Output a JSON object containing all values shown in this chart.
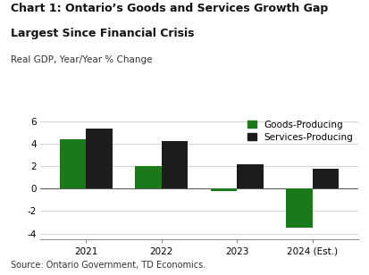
{
  "title_line1": "Chart 1: Ontario’s Goods and Services Growth Gap",
  "title_line2": "Largest Since Financial Crisis",
  "subtitle": "Real GDP, Year/Year % Change",
  "source": "Source: Ontario Government, TD Economics.",
  "years": [
    "2021",
    "2022",
    "2023",
    "2024 (Est.)"
  ],
  "goods_values": [
    4.4,
    2.0,
    -0.2,
    -3.5
  ],
  "services_values": [
    5.3,
    4.2,
    2.2,
    1.8
  ],
  "goods_color": "#1a7a1a",
  "services_color": "#1c1c1c",
  "ylim": [
    -4.5,
    6.5
  ],
  "yticks": [
    -4,
    -2,
    0,
    2,
    4,
    6
  ],
  "bar_width": 0.35,
  "legend_goods": "Goods-Producing",
  "legend_services": "Services-Producing",
  "title_fontsize": 9.0,
  "subtitle_fontsize": 7.5,
  "tick_fontsize": 7.5,
  "source_fontsize": 7.0,
  "legend_fontsize": 7.5
}
